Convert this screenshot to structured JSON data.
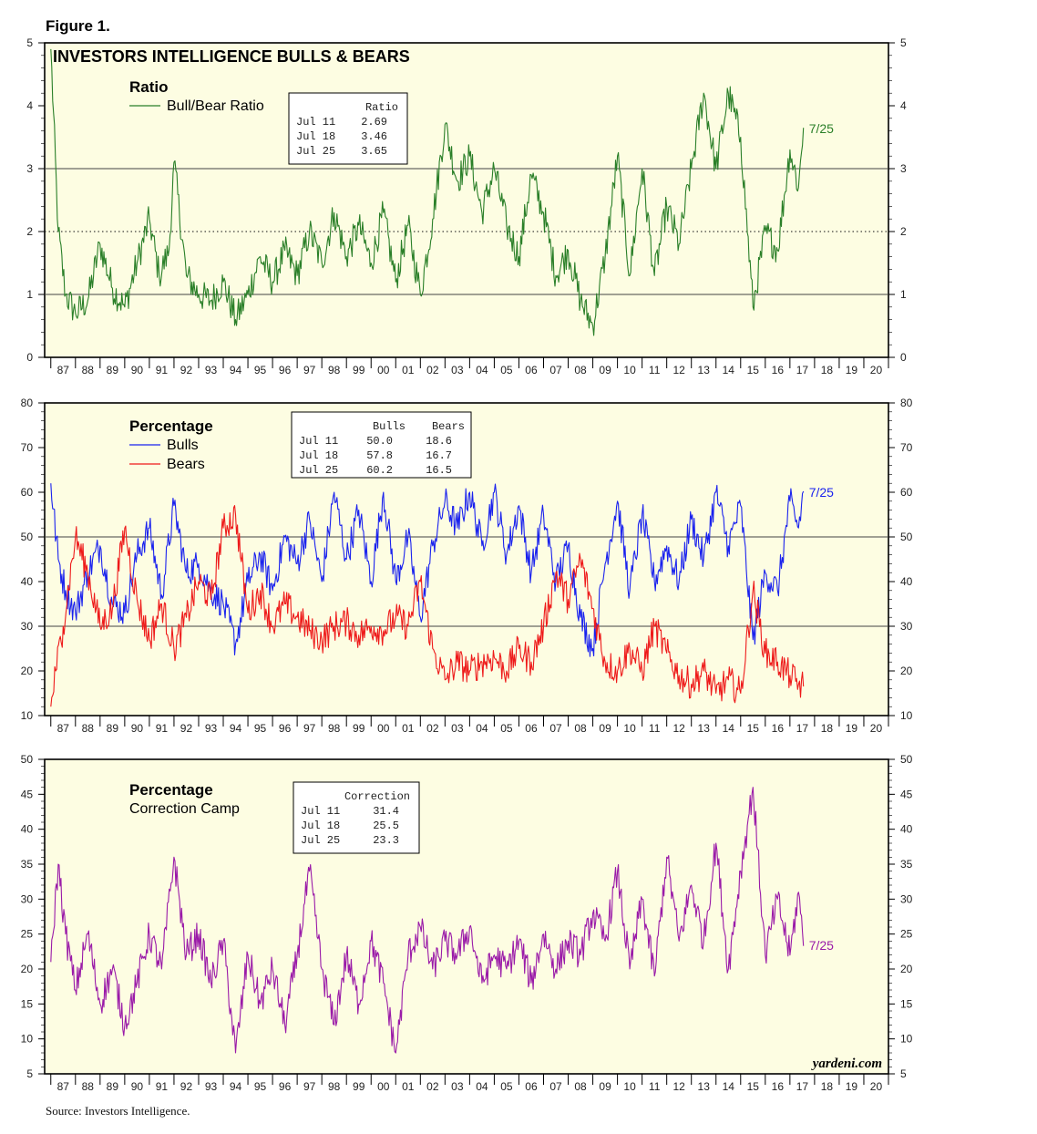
{
  "figure_title": "Figure 1.",
  "source_text": "Source: Investors Intelligence.",
  "watermark": "yardeni.com",
  "colors": {
    "panel_bg": "#fdfde2",
    "ratio": "#2a7f28",
    "bulls": "#1a22ee",
    "bears": "#ee1a1a",
    "correction": "#9a1aa8",
    "grid": "#555555"
  },
  "x_labels": [
    "87",
    "88",
    "89",
    "90",
    "91",
    "92",
    "93",
    "94",
    "95",
    "96",
    "97",
    "98",
    "99",
    "00",
    "01",
    "02",
    "03",
    "04",
    "05",
    "06",
    "07",
    "08",
    "09",
    "10",
    "11",
    "12",
    "13",
    "14",
    "15",
    "16",
    "17",
    "18",
    "19",
    "20"
  ],
  "chart_data": [
    {
      "type": "line",
      "panel_title": "INVESTORS INTELLIGENCE BULLS & BEARS",
      "heading": "Ratio",
      "ylim": [
        0,
        5
      ],
      "yticks": [
        0,
        1,
        2,
        3,
        4,
        5
      ],
      "reference_lines": [
        1,
        2,
        3
      ],
      "dotted_lines": [
        2
      ],
      "end_label": "7/25",
      "series": [
        {
          "name": "Bull/Bear Ratio",
          "color": "#2a7f28",
          "x": [
            1987.0,
            1987.3,
            1987.6,
            1988.0,
            1988.5,
            1989.0,
            1989.5,
            1990.0,
            1990.5,
            1991.0,
            1991.4,
            1991.8,
            1992.0,
            1992.5,
            1993.0,
            1993.5,
            1994.0,
            1994.5,
            1995.0,
            1995.5,
            1996.0,
            1996.5,
            1997.0,
            1997.5,
            1998.0,
            1998.5,
            1999.0,
            1999.5,
            2000.0,
            2000.5,
            2001.0,
            2001.5,
            2002.0,
            2002.5,
            2003.0,
            2003.5,
            2004.0,
            2004.5,
            2005.0,
            2005.5,
            2006.0,
            2006.5,
            2007.0,
            2007.5,
            2008.0,
            2008.5,
            2009.0,
            2009.5,
            2010.0,
            2010.5,
            2011.0,
            2011.5,
            2012.0,
            2012.5,
            2013.0,
            2013.5,
            2014.0,
            2014.5,
            2015.0,
            2015.5,
            2016.0,
            2016.5,
            2017.0,
            2017.35,
            2017.55
          ],
          "values": [
            4.9,
            2.0,
            1.0,
            0.7,
            0.9,
            1.8,
            1.1,
            0.8,
            1.5,
            2.2,
            1.3,
            1.7,
            3.1,
            1.3,
            1.0,
            0.9,
            1.2,
            0.6,
            1.0,
            1.6,
            1.2,
            1.7,
            1.3,
            2.0,
            1.5,
            2.3,
            1.6,
            2.1,
            1.5,
            2.3,
            1.2,
            2.1,
            1.0,
            2.2,
            3.7,
            2.8,
            3.2,
            2.3,
            3.0,
            2.1,
            1.6,
            2.9,
            2.3,
            1.3,
            1.7,
            0.9,
            0.5,
            1.6,
            3.2,
            1.3,
            3.0,
            1.3,
            2.4,
            1.8,
            3.0,
            4.2,
            3.0,
            4.2,
            3.5,
            0.8,
            2.0,
            1.7,
            3.3,
            2.7,
            3.65
          ]
        }
      ],
      "table": {
        "columns": [
          "Ratio"
        ],
        "rows": [
          {
            "date": "Jul 11",
            "values": [
              "2.69"
            ]
          },
          {
            "date": "Jul 18",
            "values": [
              "3.46"
            ]
          },
          {
            "date": "Jul 25",
            "values": [
              "3.65"
            ]
          }
        ]
      }
    },
    {
      "type": "line",
      "heading": "Percentage",
      "ylim": [
        10,
        80
      ],
      "yticks": [
        10,
        20,
        30,
        40,
        50,
        60,
        70,
        80
      ],
      "reference_lines": [
        30,
        50
      ],
      "end_label": "7/25",
      "series": [
        {
          "name": "Bulls",
          "color": "#1a22ee",
          "x": [
            1987.0,
            1987.3,
            1987.6,
            1988.0,
            1988.5,
            1989.0,
            1989.5,
            1990.0,
            1990.5,
            1991.0,
            1991.5,
            1992.0,
            1992.5,
            1993.0,
            1993.5,
            1994.0,
            1994.5,
            1995.0,
            1995.5,
            1996.0,
            1996.5,
            1997.0,
            1997.5,
            1998.0,
            1998.5,
            1999.0,
            1999.5,
            2000.0,
            2000.5,
            2001.0,
            2001.5,
            2002.0,
            2002.5,
            2003.0,
            2003.5,
            2004.0,
            2004.5,
            2005.0,
            2005.5,
            2006.0,
            2006.5,
            2007.0,
            2007.5,
            2008.0,
            2008.5,
            2009.0,
            2009.5,
            2010.0,
            2010.5,
            2011.0,
            2011.5,
            2012.0,
            2012.5,
            2013.0,
            2013.5,
            2014.0,
            2014.5,
            2015.0,
            2015.5,
            2016.0,
            2016.5,
            2017.0,
            2017.35,
            2017.55
          ],
          "values": [
            62,
            45,
            38,
            33,
            42,
            48,
            35,
            33,
            46,
            52,
            37,
            57,
            42,
            44,
            38,
            35,
            26,
            40,
            46,
            38,
            50,
            44,
            54,
            40,
            60,
            45,
            56,
            40,
            60,
            40,
            50,
            32,
            48,
            58,
            52,
            60,
            48,
            60,
            46,
            57,
            42,
            55,
            40,
            48,
            32,
            25,
            44,
            58,
            38,
            55,
            40,
            48,
            40,
            54,
            45,
            60,
            48,
            57,
            27,
            42,
            38,
            58,
            52,
            60.2
          ]
        },
        {
          "name": "Bears",
          "color": "#ee1a1a",
          "x": [
            1987.0,
            1987.2,
            1987.5,
            1988.0,
            1988.5,
            1989.0,
            1989.5,
            1990.0,
            1990.5,
            1991.0,
            1991.5,
            1992.0,
            1992.5,
            1993.0,
            1993.5,
            1994.0,
            1994.5,
            1995.0,
            1995.5,
            1996.0,
            1996.5,
            1997.0,
            1997.5,
            1998.0,
            1998.5,
            1999.0,
            1999.5,
            2000.0,
            2000.5,
            2001.0,
            2001.5,
            2002.0,
            2002.5,
            2003.0,
            2003.5,
            2004.0,
            2004.5,
            2005.0,
            2005.5,
            2006.0,
            2006.5,
            2007.0,
            2007.5,
            2008.0,
            2008.5,
            2009.0,
            2009.5,
            2010.0,
            2010.5,
            2011.0,
            2011.5,
            2012.0,
            2012.5,
            2013.0,
            2013.5,
            2014.0,
            2014.5,
            2015.0,
            2015.5,
            2016.0,
            2016.5,
            2017.0,
            2017.35,
            2017.55
          ],
          "values": [
            12,
            20,
            30,
            50,
            42,
            30,
            34,
            52,
            36,
            27,
            35,
            25,
            32,
            40,
            36,
            52,
            55,
            33,
            38,
            30,
            35,
            32,
            29,
            27,
            30,
            31,
            28,
            30,
            29,
            32,
            30,
            40,
            25,
            18,
            22,
            20,
            22,
            23,
            20,
            25,
            22,
            30,
            42,
            36,
            45,
            34,
            22,
            20,
            25,
            20,
            30,
            24,
            19,
            17,
            20,
            15,
            18,
            15,
            38,
            24,
            22,
            19,
            17,
            16.5
          ]
        }
      ],
      "table": {
        "columns": [
          "Bulls",
          "Bears"
        ],
        "rows": [
          {
            "date": "Jul 11",
            "values": [
              "50.0",
              "18.6"
            ]
          },
          {
            "date": "Jul 18",
            "values": [
              "57.8",
              "16.7"
            ]
          },
          {
            "date": "Jul 25",
            "values": [
              "60.2",
              "16.5"
            ]
          }
        ]
      }
    },
    {
      "type": "line",
      "heading": "Percentage",
      "ylim": [
        5,
        50
      ],
      "yticks": [
        5,
        10,
        15,
        20,
        25,
        30,
        35,
        40,
        45,
        50
      ],
      "reference_lines": [],
      "end_label": "7/25",
      "series": [
        {
          "name": "Correction Camp",
          "color": "#9a1aa8",
          "x": [
            1987.0,
            1987.3,
            1987.6,
            1988.0,
            1988.5,
            1989.0,
            1989.5,
            1990.0,
            1990.5,
            1991.0,
            1991.5,
            1992.0,
            1992.5,
            1993.0,
            1993.5,
            1994.0,
            1994.5,
            1995.0,
            1995.5,
            1996.0,
            1996.5,
            1997.0,
            1997.5,
            1998.0,
            1998.5,
            1999.0,
            1999.5,
            2000.0,
            2000.5,
            2001.0,
            2001.5,
            2002.0,
            2002.5,
            2003.0,
            2003.5,
            2004.0,
            2004.5,
            2005.0,
            2005.5,
            2006.0,
            2006.5,
            2007.0,
            2007.5,
            2008.0,
            2008.5,
            2009.0,
            2009.5,
            2010.0,
            2010.5,
            2011.0,
            2011.5,
            2012.0,
            2012.5,
            2013.0,
            2013.5,
            2014.0,
            2014.5,
            2015.0,
            2015.5,
            2016.0,
            2016.5,
            2017.0,
            2017.35,
            2017.55
          ],
          "values": [
            21,
            35,
            25,
            17,
            25,
            15,
            20,
            12,
            18,
            25,
            20,
            36,
            22,
            25,
            18,
            24,
            8,
            22,
            15,
            20,
            12,
            22,
            34,
            20,
            12,
            22,
            15,
            24,
            18,
            8,
            22,
            26,
            20,
            24,
            22,
            26,
            18,
            22,
            20,
            24,
            18,
            25,
            20,
            24,
            22,
            28,
            24,
            34,
            20,
            30,
            19,
            36,
            24,
            32,
            24,
            38,
            20,
            34,
            46,
            22,
            30,
            22,
            31,
            23.3
          ]
        }
      ],
      "table": {
        "columns": [
          "Correction"
        ],
        "rows": [
          {
            "date": "Jul 11",
            "values": [
              "31.4"
            ]
          },
          {
            "date": "Jul 18",
            "values": [
              "25.5"
            ]
          },
          {
            "date": "Jul 25",
            "values": [
              "23.3"
            ]
          }
        ]
      }
    }
  ]
}
